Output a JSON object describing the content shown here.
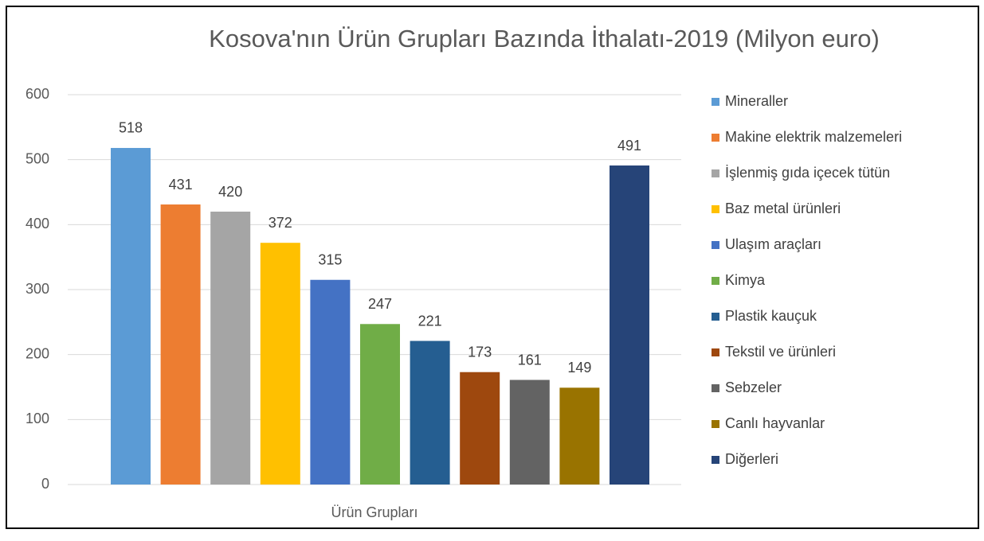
{
  "chart_data": {
    "type": "bar",
    "title": "Kosova'nın Ürün Grupları Bazında İthalatı-2019 (Milyon euro)",
    "categories": [
      "Ürün Grupları"
    ],
    "series": [
      {
        "name": "Mineraller",
        "color": "#5b9bd5",
        "values": [
          518
        ]
      },
      {
        "name": "Makine elektrik malzemeleri",
        "color": "#ed7d31",
        "values": [
          431
        ]
      },
      {
        "name": "İşlenmiş gıda içecek tütün",
        "color": "#a5a5a5",
        "values": [
          420
        ]
      },
      {
        "name": "Baz metal ürünleri",
        "color": "#ffc000",
        "values": [
          372
        ]
      },
      {
        "name": "Ulaşım araçları",
        "color": "#4472c4",
        "values": [
          315
        ]
      },
      {
        "name": "Kimya",
        "color": "#70ad47",
        "values": [
          247
        ]
      },
      {
        "name": "Plastik kauçuk",
        "color": "#255e91",
        "values": [
          221
        ]
      },
      {
        "name": "Tekstil ve ürünleri",
        "color": "#9e480e",
        "values": [
          173
        ]
      },
      {
        "name": "Sebzeler",
        "color": "#636363",
        "values": [
          161
        ]
      },
      {
        "name": "Canlı hayvanlar",
        "color": "#997300",
        "values": [
          149
        ]
      },
      {
        "name": "Diğerleri",
        "color": "#264478",
        "values": [
          491
        ]
      }
    ],
    "ylim": [
      0,
      600
    ],
    "yticks": [
      0,
      100,
      200,
      300,
      400,
      500,
      600
    ],
    "grid": true,
    "legend": "right"
  }
}
